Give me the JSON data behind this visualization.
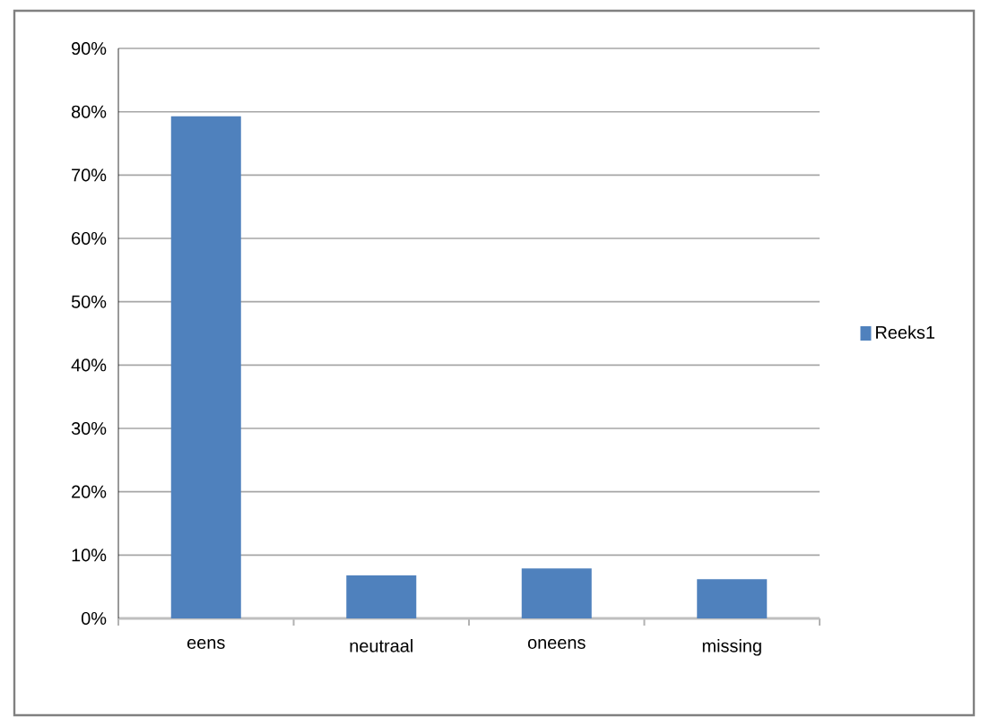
{
  "chart_data": {
    "type": "bar",
    "categories": [
      "eens",
      "neutraal",
      "oneens",
      "missing"
    ],
    "series": [
      {
        "name": "Reeks1",
        "color": "#4f81bd",
        "values": [
          79.3,
          6.8,
          7.9,
          6.2
        ]
      }
    ],
    "ylim": [
      0,
      90
    ],
    "yticks": [
      {
        "value": 0,
        "label": "0%"
      },
      {
        "value": 10,
        "label": "10%"
      },
      {
        "value": 20,
        "label": "20%"
      },
      {
        "value": 30,
        "label": "30%"
      },
      {
        "value": 40,
        "label": "40%"
      },
      {
        "value": 50,
        "label": "50%"
      },
      {
        "value": 60,
        "label": "60%"
      },
      {
        "value": 70,
        "label": "70%"
      },
      {
        "value": 80,
        "label": "80%"
      },
      {
        "value": 90,
        "label": "90%"
      }
    ],
    "grid": "y",
    "legend": "right"
  }
}
